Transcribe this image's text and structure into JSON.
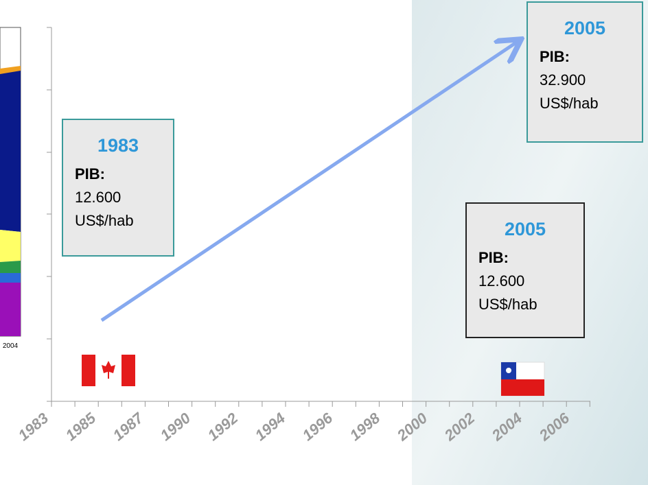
{
  "left_chart": {
    "x_label": "2004"
  },
  "boxes": [
    {
      "year": "1983",
      "label": "PIB:",
      "value": "12.600",
      "unit": "US$/hab"
    },
    {
      "year": "2005",
      "label": "PIB:",
      "value": "32.900",
      "unit": "US$/hab"
    },
    {
      "year": "2005",
      "label": "PIB:",
      "value": "12.600",
      "unit": "US$/hab"
    }
  ],
  "x_axis": {
    "labels": [
      "1983",
      "1985",
      "1987",
      "1990",
      "1992",
      "1994",
      "1996",
      "1998",
      "2000",
      "2002",
      "2004",
      "2006"
    ]
  }
}
